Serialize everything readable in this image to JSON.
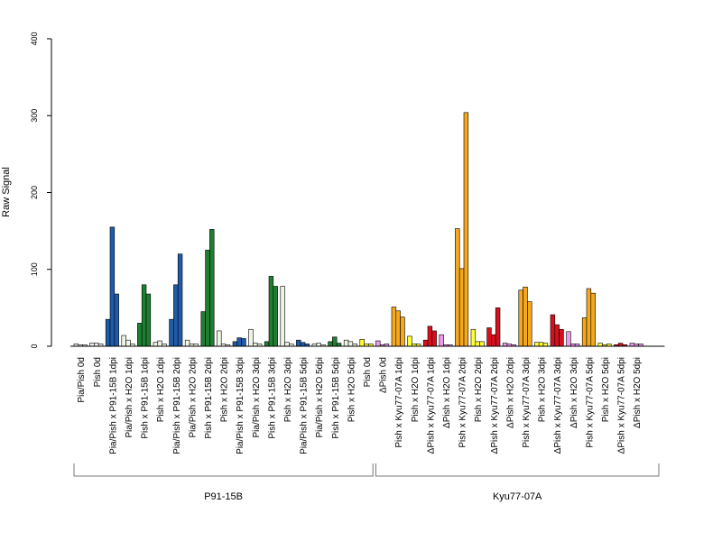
{
  "chart_data": {
    "type": "bar",
    "ylabel": "Raw Signal",
    "ylim": [
      0,
      400
    ],
    "yticks": [
      "0",
      "100",
      "200",
      "300",
      "400"
    ],
    "groups": [
      {
        "label": "P91-15B",
        "from": 0,
        "to": 18
      },
      {
        "label": "Kyu77-07A",
        "from": 19,
        "to": 36
      }
    ],
    "categories": [
      {
        "label": "Pia/Pish 0d",
        "color": "#eeeeee",
        "values": [
          3,
          2,
          2
        ]
      },
      {
        "label": "Pish 0d",
        "color": "#eeeeee",
        "values": [
          4,
          4,
          3
        ]
      },
      {
        "label": "Pia/Pish x P91-15B 1dpi",
        "color": "#1f5ba8",
        "values": [
          35,
          155,
          68
        ]
      },
      {
        "label": "Pia/Pish x H2O 1dpi",
        "color": "#eef5e6",
        "values": [
          14,
          8,
          3
        ]
      },
      {
        "label": "Pish x P91-15B 1dpi",
        "color": "#1e7f33",
        "values": [
          30,
          80,
          68
        ]
      },
      {
        "label": "Pish x H2O 1dpi",
        "color": "#eef5e6",
        "values": [
          5,
          7,
          3
        ]
      },
      {
        "label": "Pia/Pish x P91-15B 2dpi",
        "color": "#1f5ba8",
        "values": [
          35,
          80,
          120
        ]
      },
      {
        "label": "Pia/Pish x H2O 2dpi",
        "color": "#eef5e6",
        "values": [
          8,
          3,
          3
        ]
      },
      {
        "label": "Pish x P91-15B 2dpi",
        "color": "#1e7f33",
        "values": [
          45,
          125,
          152
        ]
      },
      {
        "label": "Pish x H2O 2dpi",
        "color": "#eef5e6",
        "values": [
          20,
          3,
          2
        ]
      },
      {
        "label": "Pia/Pish x P91-15B 3dpi",
        "color": "#1f5ba8",
        "values": [
          6,
          11,
          10
        ]
      },
      {
        "label": "Pia/Pish x H2O 3dpi",
        "color": "#eef5e6",
        "values": [
          22,
          4,
          3
        ]
      },
      {
        "label": "Pish x P91-15B 3dpi",
        "color": "#1e7f33",
        "values": [
          6,
          91,
          78
        ]
      },
      {
        "label": "Pish x H2O 3dpi",
        "color": "#eef5e6",
        "values": [
          78,
          5,
          3
        ]
      },
      {
        "label": "Pia/Pish x P91-15B 5dpi",
        "color": "#1f5ba8",
        "values": [
          8,
          5,
          3
        ]
      },
      {
        "label": "Pia/Pish x H2O 5dpi",
        "color": "#eef5e6",
        "values": [
          3,
          4,
          2
        ]
      },
      {
        "label": "Pish x P91-15B 5dpi",
        "color": "#1e7f33",
        "values": [
          6,
          12,
          4
        ]
      },
      {
        "label": "Pish x H2O 5dpi",
        "color": "#eef5e6",
        "values": [
          8,
          6,
          3
        ]
      },
      {
        "label": "Pish 0d",
        "color": "#ffff33",
        "values": [
          9,
          3,
          3
        ]
      },
      {
        "label": "ΔPish 0d",
        "color": "#ee99ee",
        "values": [
          7,
          2,
          3
        ]
      },
      {
        "label": "Pish x Kyu77-07A 1dpi",
        "color": "#f5a81d",
        "values": [
          51,
          46,
          38
        ]
      },
      {
        "label": "Pish x H2O 1dpi",
        "color": "#ffff33",
        "values": [
          13,
          3,
          3
        ]
      },
      {
        "label": "ΔPish x Kyu77-07A 1dpi",
        "color": "#d8101e",
        "values": [
          8,
          26,
          20
        ]
      },
      {
        "label": "ΔPish x H2O 1dpi",
        "color": "#ee99ee",
        "values": [
          15,
          2,
          2
        ]
      },
      {
        "label": "Pish x Kyu77-07A 2dpi",
        "color": "#f5a81d",
        "values": [
          153,
          101,
          304
        ]
      },
      {
        "label": "Pish x H2O 2dpi",
        "color": "#ffff33",
        "values": [
          22,
          6,
          6
        ]
      },
      {
        "label": "ΔPish x Kyu77-07A 2dpi",
        "color": "#d8101e",
        "values": [
          24,
          15,
          50
        ]
      },
      {
        "label": "ΔPish x H2O 2dpi",
        "color": "#ee99ee",
        "values": [
          4,
          3,
          2
        ]
      },
      {
        "label": "Pish x Kyu77-07A 3dpi",
        "color": "#f5a81d",
        "values": [
          73,
          77,
          58
        ]
      },
      {
        "label": "Pish x H2O 3dpi",
        "color": "#ffff33",
        "values": [
          5,
          5,
          4
        ]
      },
      {
        "label": "ΔPish x Kyu77-07A 3dpi",
        "color": "#d8101e",
        "values": [
          41,
          28,
          22
        ]
      },
      {
        "label": "ΔPish x H2O 3dpi",
        "color": "#ee99ee",
        "values": [
          19,
          3,
          3
        ]
      },
      {
        "label": "Pish x Kyu77-07A 5dpi",
        "color": "#f5a81d",
        "values": [
          37,
          75,
          69
        ]
      },
      {
        "label": "Pish x H2O 5dpi",
        "color": "#ffff33",
        "values": [
          4,
          2,
          3
        ]
      },
      {
        "label": "ΔPish x Kyu77-07A 5dpi",
        "color": "#d8101e",
        "values": [
          2,
          4,
          2
        ]
      },
      {
        "label": "ΔPish x H2O 5dpi",
        "color": "#ee99ee",
        "values": [
          4,
          3,
          3
        ]
      }
    ]
  }
}
